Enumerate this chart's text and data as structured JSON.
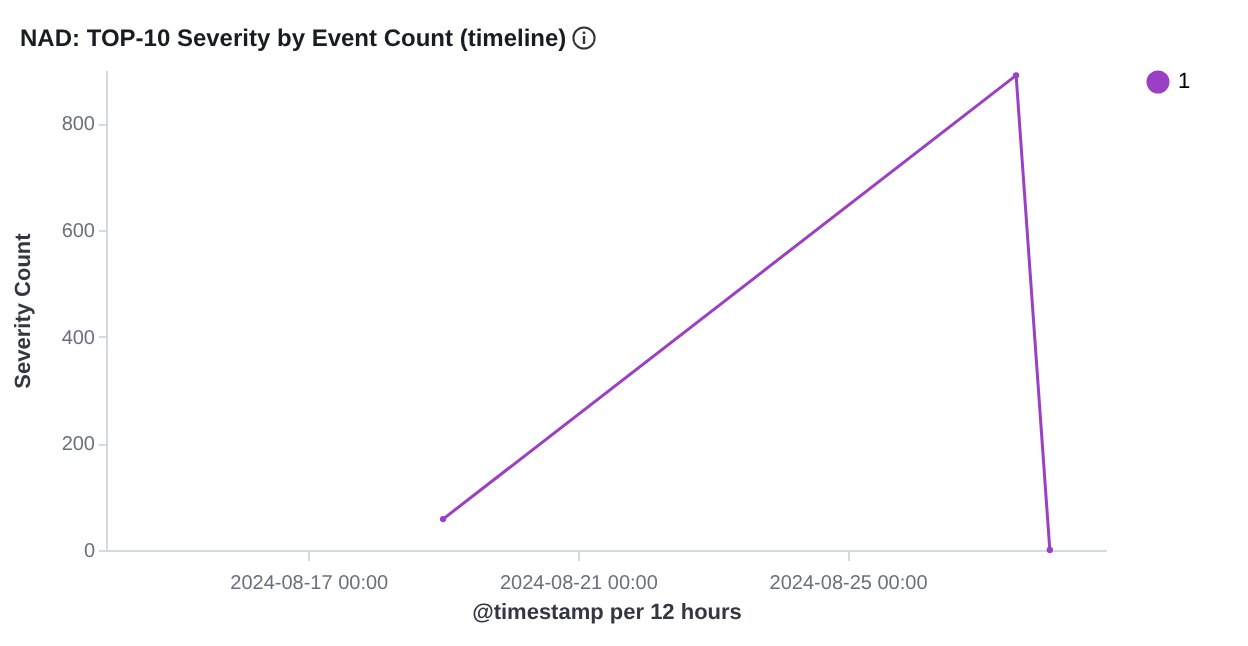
{
  "chart_data": {
    "type": "line",
    "title": "NAD: TOP-10 Severity by Event Count (timeline)",
    "xlabel": "@timestamp per 12 hours",
    "ylabel": "Severity Count",
    "x": [
      "2024-08-19T00:00",
      "2024-08-27T12:00",
      "2024-08-28T00:00"
    ],
    "series": [
      {
        "name": "1",
        "color": "#9b3fc4",
        "values": [
          58,
          890,
          0
        ]
      }
    ],
    "xlim": [
      "2024-08-14T00:00",
      "2024-08-28T20:00"
    ],
    "xticks": [
      {
        "value": "2024-08-17T00:00",
        "label": "2024-08-17 00:00"
      },
      {
        "value": "2024-08-21T00:00",
        "label": "2024-08-21 00:00"
      },
      {
        "value": "2024-08-25T00:00",
        "label": "2024-08-25 00:00"
      }
    ],
    "ylim": [
      0,
      900
    ],
    "yticks": [
      0,
      200,
      400,
      600,
      800
    ],
    "legend": "top right",
    "marker": "circle",
    "grid": false
  }
}
